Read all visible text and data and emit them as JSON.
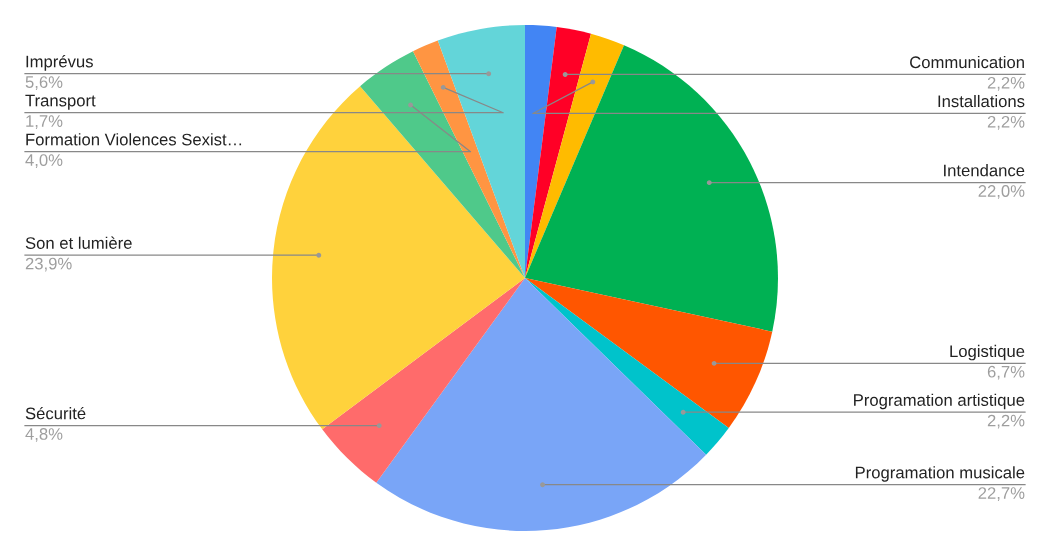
{
  "chart_data": {
    "type": "pie",
    "categories": [
      null,
      "Communication",
      "Installations",
      "Intendance",
      "Logistique",
      "Programation artistique",
      "Programation musicale",
      "Sécurité",
      "Son et lumière",
      "Formation Violences Sexist…",
      "Transport",
      "Imprévus"
    ],
    "values": [
      2.0,
      2.2,
      2.2,
      22.0,
      6.7,
      2.2,
      22.7,
      4.8,
      23.9,
      4.0,
      1.7,
      5.6
    ],
    "value_labels": [
      null,
      "2,2%",
      "2,2%",
      "22,0%",
      "6,7%",
      "2,2%",
      "22,7%",
      "4,8%",
      "23,9%",
      "4,0%",
      "1,7%",
      "5,6%"
    ],
    "colors": [
      "#4285f4",
      "#ff0026",
      "#ffbb00",
      "#00b153",
      "#ff5600",
      "#00c3cb",
      "#79a5f7",
      "#ff6b6b",
      "#ffd23c",
      "#4fc98a",
      "#ff9542",
      "#63d5d9"
    ]
  }
}
